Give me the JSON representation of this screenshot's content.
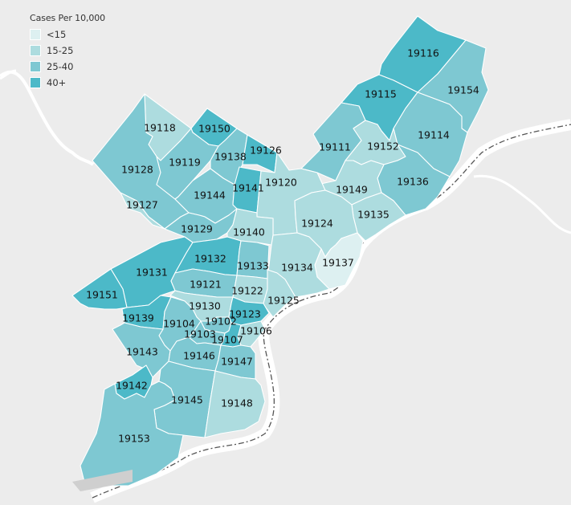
{
  "legend": {
    "title": "Cases Per 10,000",
    "items": [
      {
        "label": "<15",
        "color": "#ddf0f1"
      },
      {
        "label": "15-25",
        "color": "#addcdf"
      },
      {
        "label": "25-40",
        "color": "#7ec8d2"
      },
      {
        "label": "40+",
        "color": "#4cb9c8"
      }
    ]
  },
  "zips": [
    {
      "code": "19116",
      "bin": "40+"
    },
    {
      "code": "19154",
      "bin": "25-40"
    },
    {
      "code": "19115",
      "bin": "40+"
    },
    {
      "code": "19114",
      "bin": "25-40"
    },
    {
      "code": "19111",
      "bin": "25-40"
    },
    {
      "code": "19152",
      "bin": "15-25"
    },
    {
      "code": "19136",
      "bin": "25-40"
    },
    {
      "code": "19149",
      "bin": "15-25"
    },
    {
      "code": "19135",
      "bin": "15-25"
    },
    {
      "code": "19118",
      "bin": "15-25"
    },
    {
      "code": "19150",
      "bin": "40+"
    },
    {
      "code": "19128",
      "bin": "25-40"
    },
    {
      "code": "19119",
      "bin": "25-40"
    },
    {
      "code": "19138",
      "bin": "25-40"
    },
    {
      "code": "19126",
      "bin": "40+"
    },
    {
      "code": "19127",
      "bin": "15-25"
    },
    {
      "code": "19144",
      "bin": "25-40"
    },
    {
      "code": "19141",
      "bin": "40+"
    },
    {
      "code": "19120",
      "bin": "15-25"
    },
    {
      "code": "19124",
      "bin": "15-25"
    },
    {
      "code": "19129",
      "bin": "25-40"
    },
    {
      "code": "19140",
      "bin": "15-25"
    },
    {
      "code": "19137",
      "bin": "<15"
    },
    {
      "code": "19131",
      "bin": "40+"
    },
    {
      "code": "19132",
      "bin": "40+"
    },
    {
      "code": "19133",
      "bin": "25-40"
    },
    {
      "code": "19134",
      "bin": "15-25"
    },
    {
      "code": "19121",
      "bin": "25-40"
    },
    {
      "code": "19122",
      "bin": "15-25"
    },
    {
      "code": "19151",
      "bin": "40+"
    },
    {
      "code": "19125",
      "bin": "15-25"
    },
    {
      "code": "19130",
      "bin": "15-25"
    },
    {
      "code": "19123",
      "bin": "40+"
    },
    {
      "code": "19139",
      "bin": "40+"
    },
    {
      "code": "19104",
      "bin": "25-40"
    },
    {
      "code": "19102",
      "bin": "25-40"
    },
    {
      "code": "19106",
      "bin": "15-25"
    },
    {
      "code": "19103",
      "bin": "25-40"
    },
    {
      "code": "19107",
      "bin": "40+"
    },
    {
      "code": "19143",
      "bin": "25-40"
    },
    {
      "code": "19146",
      "bin": "25-40"
    },
    {
      "code": "19147",
      "bin": "25-40"
    },
    {
      "code": "19142",
      "bin": "40+"
    },
    {
      "code": "19145",
      "bin": "25-40"
    },
    {
      "code": "19148",
      "bin": "15-25"
    },
    {
      "code": "19153",
      "bin": "25-40"
    }
  ]
}
